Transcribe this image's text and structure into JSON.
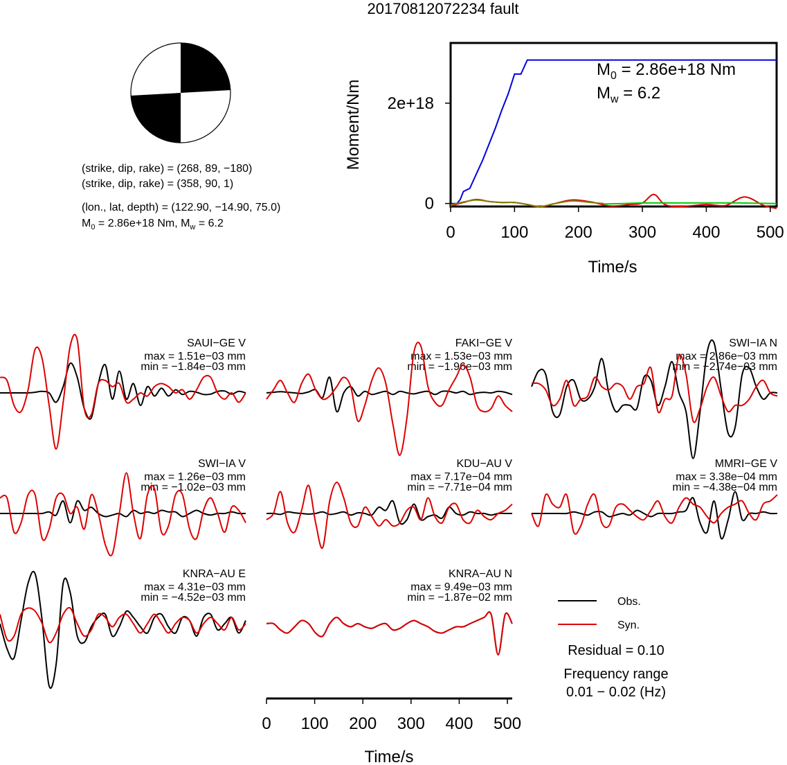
{
  "title": "20170812072234 fault",
  "info": {
    "line1": "(strike, dip, rake) = (268, 89, −180)",
    "line2": "(strike, dip, rake) = (358, 90, 1)",
    "line3": "(lon., lat, depth) = (122.90, −14.90, 75.0)",
    "m0_label": "M",
    "m0_sub": "0",
    "m0_value": " = 2.86e+18 Nm, M",
    "mw_sub": "w",
    "mw_value": " = 6.2"
  },
  "colors": {
    "obs": "#000000",
    "syn": "#dd0000",
    "moment": "#0000dd",
    "green": "#00cc00",
    "olive": "#808000"
  },
  "chart_data": [
    {
      "type": "line",
      "id": "moment-rate",
      "xlabel": "Time/s",
      "ylabel": "Moment/Nm",
      "xlim": [
        0,
        510
      ],
      "ylim": [
        -6e+16,
        3.2e+18
      ],
      "xticks": [
        "0",
        "100",
        "200",
        "300",
        "400",
        "500"
      ],
      "yticks": [
        "0",
        "2e+18"
      ],
      "annotation": {
        "m0": "M",
        "m0_sub": "0",
        "m0_val": " = 2.86e+18 Nm",
        "mw": "M",
        "mw_sub": "w",
        "mw_val": " = 6.2"
      },
      "series": [
        {
          "color": "moment",
          "x": [
            0,
            10,
            15,
            20,
            30,
            40,
            50,
            60,
            70,
            80,
            90,
            100,
            110,
            120,
            130,
            510
          ],
          "y": [
            0.0,
            0.0,
            8e+16,
            2.4e+17,
            3e+17,
            5.8e+17,
            8.6e+17,
            1.18e+18,
            1.5e+18,
            1.86e+18,
            2.18e+18,
            2.58e+18,
            2.58e+18,
            2.86e+18,
            2.86e+18,
            2.86e+18
          ]
        },
        {
          "color": "syn",
          "x": [
            0,
            20,
            40,
            60,
            80,
            100,
            120,
            140,
            160,
            190,
            220,
            250,
            280,
            300,
            318,
            335,
            360,
            400,
            430,
            460,
            490,
            510
          ],
          "y": [
            -5e+16,
            2e+16,
            8e+16,
            4e+16,
            2e+16,
            2e+16,
            -2e+16,
            -7e+16,
            -1e+16,
            7e+16,
            3e+16,
            -5e+16,
            -2e+16,
            1e+16,
            1.8e+17,
            -2e+16,
            -6e+16,
            -2e+16,
            -4e+16,
            1.3e+17,
            -4e+16,
            -1e+17
          ]
        },
        {
          "color": "olive",
          "x": [
            0,
            20,
            40,
            60,
            80,
            100,
            120,
            140,
            160,
            190,
            220,
            240
          ],
          "y": [
            -3e+16,
            3e+16,
            7e+16,
            4e+16,
            2e+16,
            2e+16,
            -2e+16,
            -6e+16,
            -1e+16,
            5e+16,
            2e+16,
            0.0
          ]
        },
        {
          "color": "green",
          "x": [
            240,
            270,
            300,
            350,
            400,
            450,
            510
          ],
          "y": [
            -1e+16,
            0.0,
            1e+16,
            1e+16,
            1e+16,
            1e+16,
            0.0
          ]
        }
      ]
    },
    {
      "type": "line",
      "id": "waveforms",
      "xlabel": "Time/s",
      "xticks": [
        "0",
        "100",
        "200",
        "300",
        "400",
        "500"
      ],
      "xlim": [
        0,
        510
      ],
      "legend": {
        "obs": "Obs.",
        "syn": "Syn."
      },
      "residual": "Residual = 0.10",
      "freq_title": "Frequency range",
      "freq_range": "0.01 − 0.02 (Hz)",
      "stations": [
        {
          "name": "SAUI−GE V",
          "max": "max = 1.51e−03 mm",
          "min": "min = −1.84e−03 mm",
          "obs": [
            0,
            0,
            0,
            0,
            0,
            0.02,
            0.05,
            0,
            -0.3,
            0.2,
            0.95,
            0.5,
            -0.5,
            -0.8,
            0.3,
            0.9,
            -0.2,
            0.7,
            -0.2,
            0.3,
            -0.4,
            0.2,
            -0.1,
            0.15,
            -0.1,
            0.1,
            -0.05,
            0.05,
            0.02,
            -0.05,
            -0.04,
            0.05,
            0.06,
            -0.04,
            0.05,
            0
          ],
          "syn": [
            0.5,
            0.4,
            -0.4,
            -0.6,
            0.1,
            1.4,
            1.1,
            -0.4,
            -1.8,
            -0.3,
            1.5,
            1.7,
            -0.5,
            -0.7,
            0.3,
            0.4,
            0.2,
            0.3,
            -0.3,
            -0.2,
            0.0,
            -0.1,
            0.2,
            0.3,
            0.2,
            0.0,
            0.1,
            -0.2,
            0.1,
            0.5,
            0.5,
            0.0,
            -0.2,
            0.0,
            -0.3,
            0.0
          ]
        },
        {
          "name": "FAKI−GE V",
          "max": "max = 1.53e−03 mm",
          "min": "min = −1.96e−03 mm",
          "obs": [
            0,
            0.02,
            0.04,
            0.02,
            0.0,
            -0.02,
            0.03,
            0.1,
            -0.15,
            0.5,
            -0.6,
            0.0,
            0.2,
            -0.1,
            0.05,
            -0.05,
            0.0,
            0.05,
            -0.05,
            0.05,
            0.0,
            -0.03,
            0.02,
            0.05,
            -0.05,
            0.05,
            0.05,
            0.0,
            0.05,
            -0.05,
            0.0,
            0.02,
            0.0,
            0.05,
            0.02,
            -0.05
          ],
          "syn": [
            -0.2,
            0.1,
            0.4,
            0.0,
            -0.3,
            0.3,
            0.6,
            0.1,
            -0.2,
            -0.1,
            0.2,
            0.5,
            0.2,
            -0.9,
            -0.4,
            0.4,
            0.8,
            0.3,
            -1.0,
            -2.0,
            -0.8,
            1.3,
            1.5,
            0.2,
            -0.3,
            -0.4,
            0.1,
            0.5,
            0.9,
            0.5,
            -0.4,
            -0.6,
            -0.5,
            -0.1,
            -0.4,
            -0.6
          ]
        },
        {
          "name": "SWI−IA N",
          "max": "max = 2.86e−03 mm",
          "min": "min = −2.74e−03 mm",
          "obs": [
            0.2,
            0.7,
            0.6,
            -0.6,
            -0.7,
            0.2,
            0.4,
            -0.2,
            -0.2,
            0.2,
            1.1,
            0.0,
            -0.6,
            -0.4,
            -0.4,
            -0.5,
            0.5,
            0.4,
            -0.4,
            0.2,
            1.0,
            0.0,
            -0.6,
            -2.1,
            -0.6,
            1.3,
            1.6,
            0.1,
            -1.3,
            -1.1,
            0.6,
            0.8,
            0.2,
            -0.2,
            0.0,
            0.0
          ],
          "syn": [
            0.3,
            0.3,
            0.1,
            -0.4,
            -0.2,
            0.4,
            -0.4,
            -0.2,
            -0.1,
            0.5,
            0.2,
            0.1,
            0.3,
            0.2,
            -0.2,
            0.2,
            0.3,
            0.8,
            -0.6,
            -0.2,
            -0.1,
            1.2,
            0.6,
            -0.9,
            -0.5,
            0.2,
            0.5,
            -0.1,
            -0.6,
            -0.4,
            -0.4,
            -0.2,
            0.2,
            0.4,
            0.0,
            -0.1
          ]
        },
        {
          "name": "SWI−IA V",
          "max": "max = 1.26e−03 mm",
          "min": "min = −1.02e−03 mm",
          "obs": [
            0,
            0.0,
            0.0,
            0.0,
            0.0,
            0.0,
            0.0,
            0.05,
            -0.05,
            0.4,
            -0.3,
            0.4,
            0.1,
            0.2,
            0.0,
            -0.1,
            -0.05,
            0.0,
            -0.1,
            0.1,
            0.0,
            0.05,
            0.0,
            0.1,
            0.05,
            0.05,
            -0.1,
            0.0,
            0.1,
            0.0,
            -0.05,
            0.0,
            0.0,
            0.05,
            0.0,
            0.0
          ],
          "syn": [
            0.5,
            0.5,
            -0.6,
            -0.3,
            0.6,
            0.6,
            -0.8,
            -0.5,
            0.5,
            0.6,
            0.0,
            0.2,
            -0.5,
            0.6,
            0.0,
            -1.0,
            -1.3,
            0.0,
            1.3,
            0.0,
            -0.8,
            0.6,
            0.8,
            -0.6,
            -0.4,
            0.6,
            0.6,
            -0.5,
            -0.8,
            0.1,
            0.5,
            0.0,
            -0.6,
            0.2,
            0.1,
            -0.3
          ]
        },
        {
          "name": "KDU−AU V",
          "max": "max = 7.17e−04 mm",
          "min": "min = −7.71e−04 mm",
          "obs": [
            0,
            0.0,
            -0.03,
            0.05,
            0.02,
            0.0,
            -0.02,
            0.0,
            0.05,
            -0.03,
            0.0,
            0.05,
            -0.05,
            0.02,
            0.0,
            -0.05,
            0.2,
            0.1,
            0.4,
            -0.3,
            -0.2,
            0.3,
            -0.2,
            -0.1,
            -0.05,
            -0.15,
            0.2,
            0.0,
            -0.05,
            0.05,
            0.0,
            0.0,
            -0.05,
            0.0,
            0.0,
            0.0
          ],
          "syn": [
            -0.2,
            0.0,
            0.7,
            -0.3,
            -0.6,
            0.1,
            0.9,
            -0.3,
            -1.1,
            0.4,
            1.0,
            0.5,
            -0.3,
            -0.4,
            0.2,
            -0.1,
            -0.4,
            -0.2,
            -0.4,
            -0.3,
            0.1,
            0.2,
            -0.2,
            0.5,
            -0.1,
            -0.3,
            0.2,
            0.3,
            -0.2,
            -0.3,
            0.1,
            -0.1,
            -0.2,
            0.0,
            0.1,
            0.3
          ]
        },
        {
          "name": "MMRI−GE V",
          "max": "max = 3.38e−04 mm",
          "min": "min = −4.38e−04 mm",
          "obs": [
            0,
            0.0,
            0.0,
            0.0,
            0.0,
            0.0,
            0.05,
            0.0,
            -0.05,
            0.05,
            0.05,
            -0.1,
            -0.05,
            0.0,
            -0.05,
            0.1,
            0.0,
            -0.1,
            0.0,
            0.0,
            0.0,
            0.05,
            0.1,
            0.5,
            -0.3,
            -0.6,
            0.4,
            -0.8,
            -0.2,
            0.7,
            -0.2,
            0.0,
            0.0,
            0.05,
            0.0,
            0.0
          ],
          "syn": [
            0.0,
            -0.4,
            0.6,
            0.3,
            0.2,
            0.6,
            -0.6,
            -0.4,
            0.3,
            0.6,
            -0.3,
            -0.4,
            0.2,
            0.3,
            0.1,
            -0.1,
            -0.2,
            0.1,
            0.4,
            -0.1,
            -0.3,
            0.2,
            0.5,
            0.3,
            0.2,
            -0.1,
            -0.3,
            0.0,
            0.2,
            0.3,
            0.4,
            0.0,
            -0.2,
            0.3,
            0.4,
            0.6
          ]
        },
        {
          "name": "KNRA−AU E",
          "max": "max = 4.31e−03 mm",
          "min": "min = −4.52e−03 mm",
          "obs": [
            0.0,
            -0.8,
            -1.1,
            0.1,
            1.3,
            1.6,
            0.1,
            -2.0,
            -1.3,
            1.3,
            1.0,
            -0.4,
            -0.6,
            -0.1,
            0.2,
            0.3,
            -0.4,
            -0.1,
            0.4,
            0.2,
            -0.1,
            -0.3,
            0.2,
            0.3,
            -0.1,
            -0.3,
            0.2,
            0.1,
            -0.4,
            0.2,
            0.3,
            -0.2,
            0.0,
            0.2,
            -0.3,
            0.1
          ],
          "syn": [
            0.3,
            -0.5,
            -0.4,
            0.3,
            0.5,
            0.4,
            0.0,
            -0.6,
            -0.3,
            0.3,
            0.5,
            0.0,
            -0.4,
            -0.2,
            0.3,
            0.2,
            -0.1,
            0.2,
            0.3,
            0.0,
            -0.3,
            0.0,
            0.3,
            0.0,
            -0.3,
            0.0,
            0.2,
            0.1,
            -0.3,
            0.0,
            0.2,
            0.0,
            -0.2,
            0.2,
            -0.2,
            0.0
          ]
        },
        {
          "name": "KNRA−AU N",
          "max": "max = 9.49e−03 mm",
          "min": "min = −1.87e−02 mm",
          "obs": [
            0.0,
            0.0,
            -0.2,
            -0.3,
            -0.1,
            0.1,
            0.0,
            -0.3,
            -0.4,
            0.0,
            0.2,
            0.0,
            -0.1,
            0.0,
            -0.1,
            -0.15,
            -0.05,
            0.0,
            -0.2,
            -0.15,
            0.0,
            0.1,
            0.0,
            -0.1,
            -0.25,
            -0.3,
            -0.2,
            -0.1,
            -0.1,
            0.0,
            0.1,
            0.2,
            0.3,
            -1.0,
            0.3,
            0.0
          ],
          "syn": [
            0.0,
            0.0,
            -0.2,
            -0.3,
            -0.1,
            0.1,
            0.0,
            -0.3,
            -0.4,
            0.0,
            0.2,
            0.0,
            -0.1,
            0.0,
            -0.1,
            -0.15,
            -0.05,
            0.0,
            -0.2,
            -0.15,
            0.0,
            0.1,
            0.0,
            -0.1,
            -0.25,
            -0.3,
            -0.2,
            -0.1,
            -0.1,
            0.0,
            0.1,
            0.2,
            0.3,
            -1.0,
            0.3,
            0.0
          ]
        }
      ]
    }
  ]
}
